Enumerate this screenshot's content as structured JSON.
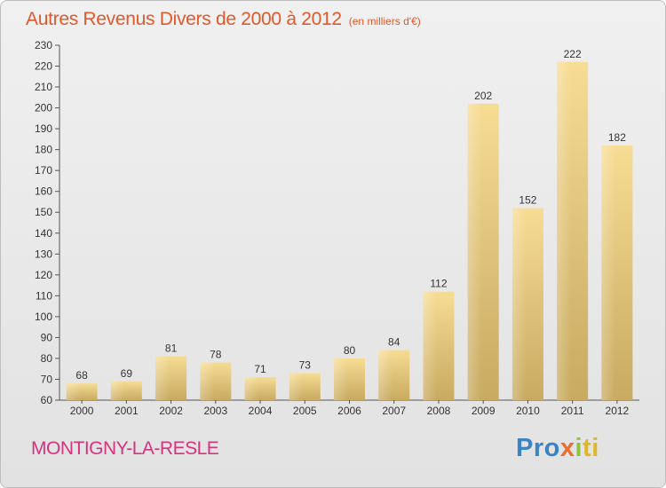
{
  "header": {
    "title": "Autres Revenus Divers de 2000 à 2012",
    "unit": "(en milliers d'€)"
  },
  "footer": {
    "city": "MONTIGNY-LA-RESLE",
    "logo_parts": [
      "Pro",
      "x",
      "i",
      "ti"
    ]
  },
  "colors": {
    "bar_light": "#f7dc94",
    "bar_dark": "#c8aa60",
    "title": "#e0592c",
    "city": "#d6337f"
  },
  "chart_data": {
    "type": "bar",
    "title": "Autres Revenus Divers de 2000 à 2012",
    "subtitle": "(en milliers d'€)",
    "categories": [
      "2000",
      "2001",
      "2002",
      "2003",
      "2004",
      "2005",
      "2006",
      "2007",
      "2008",
      "2009",
      "2010",
      "2011",
      "2012"
    ],
    "values": [
      68,
      69,
      81,
      78,
      71,
      73,
      80,
      84,
      112,
      202,
      152,
      222,
      182
    ],
    "ylim": [
      60,
      230
    ],
    "ytick_step": 10,
    "grid": false,
    "legend": "none"
  }
}
